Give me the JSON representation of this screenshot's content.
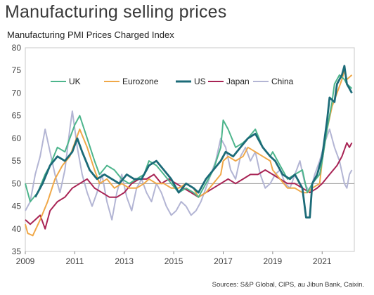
{
  "title": "Manufacturing selling prices",
  "subtitle": "Manufacturing PMI Prices Charged Index",
  "source": "Sources: S&P Global, CIPS, au Jibun Bank, Caixin.",
  "chart_data": {
    "type": "line",
    "title": "Manufacturing selling prices",
    "ylabel": "Manufacturing PMI Prices Charged Index",
    "xlim": [
      2009.0,
      2022.3
    ],
    "ylim": [
      35,
      80
    ],
    "y_ticks": [
      35,
      40,
      45,
      50,
      55,
      60,
      65,
      70,
      75,
      80
    ],
    "x_ticks": [
      2009,
      2011,
      2013,
      2015,
      2017,
      2019,
      2021
    ],
    "reference_line": 50,
    "legend_position": "top",
    "series": [
      {
        "name": "UK",
        "color": "#4db58c",
        "points": [
          [
            2009.0,
            50
          ],
          [
            2009.2,
            46
          ],
          [
            2009.5,
            48
          ],
          [
            2009.8,
            52
          ],
          [
            2010.0,
            54
          ],
          [
            2010.3,
            58
          ],
          [
            2010.6,
            57
          ],
          [
            2010.8,
            60
          ],
          [
            2011.0,
            63
          ],
          [
            2011.2,
            65
          ],
          [
            2011.5,
            60
          ],
          [
            2011.8,
            55
          ],
          [
            2012.0,
            52
          ],
          [
            2012.3,
            54
          ],
          [
            2012.6,
            53
          ],
          [
            2012.9,
            51
          ],
          [
            2013.2,
            50
          ],
          [
            2013.5,
            51
          ],
          [
            2013.8,
            52
          ],
          [
            2014.0,
            55
          ],
          [
            2014.3,
            54
          ],
          [
            2014.6,
            52
          ],
          [
            2014.9,
            50
          ],
          [
            2015.2,
            48
          ],
          [
            2015.5,
            49
          ],
          [
            2015.8,
            48
          ],
          [
            2016.0,
            47
          ],
          [
            2016.3,
            50
          ],
          [
            2016.6,
            53
          ],
          [
            2016.9,
            58
          ],
          [
            2017.0,
            64
          ],
          [
            2017.2,
            62
          ],
          [
            2017.5,
            58
          ],
          [
            2017.8,
            59
          ],
          [
            2018.0,
            60
          ],
          [
            2018.3,
            62
          ],
          [
            2018.6,
            58
          ],
          [
            2018.9,
            56
          ],
          [
            2019.0,
            57
          ],
          [
            2019.3,
            54
          ],
          [
            2019.6,
            51
          ],
          [
            2019.9,
            52
          ],
          [
            2020.2,
            53
          ],
          [
            2020.4,
            48
          ],
          [
            2020.6,
            50
          ],
          [
            2020.9,
            52
          ],
          [
            2021.0,
            55
          ],
          [
            2021.2,
            62
          ],
          [
            2021.4,
            68
          ],
          [
            2021.5,
            72
          ],
          [
            2021.7,
            74
          ],
          [
            2021.9,
            73
          ],
          [
            2022.0,
            72
          ],
          [
            2022.2,
            71
          ]
        ]
      },
      {
        "name": "Eurozone",
        "color": "#f0a848",
        "points": [
          [
            2009.0,
            41
          ],
          [
            2009.1,
            39
          ],
          [
            2009.3,
            38.5
          ],
          [
            2009.6,
            42
          ],
          [
            2009.9,
            46
          ],
          [
            2010.2,
            51
          ],
          [
            2010.5,
            54
          ],
          [
            2010.8,
            56
          ],
          [
            2011.0,
            59
          ],
          [
            2011.2,
            62
          ],
          [
            2011.5,
            58
          ],
          [
            2011.8,
            53
          ],
          [
            2012.0,
            50
          ],
          [
            2012.3,
            51
          ],
          [
            2012.6,
            49
          ],
          [
            2012.9,
            50
          ],
          [
            2013.2,
            49
          ],
          [
            2013.5,
            49
          ],
          [
            2013.8,
            50
          ],
          [
            2014.0,
            51
          ],
          [
            2014.3,
            50
          ],
          [
            2014.6,
            50
          ],
          [
            2014.9,
            49
          ],
          [
            2015.2,
            49
          ],
          [
            2015.5,
            50
          ],
          [
            2015.8,
            49
          ],
          [
            2016.0,
            47
          ],
          [
            2016.3,
            48
          ],
          [
            2016.6,
            50
          ],
          [
            2016.9,
            52
          ],
          [
            2017.0,
            55
          ],
          [
            2017.2,
            56
          ],
          [
            2017.5,
            55
          ],
          [
            2017.8,
            56
          ],
          [
            2018.0,
            58
          ],
          [
            2018.3,
            57
          ],
          [
            2018.6,
            56
          ],
          [
            2018.9,
            55
          ],
          [
            2019.0,
            53
          ],
          [
            2019.3,
            51
          ],
          [
            2019.6,
            49
          ],
          [
            2019.9,
            49
          ],
          [
            2020.2,
            48
          ],
          [
            2020.4,
            48
          ],
          [
            2020.6,
            49
          ],
          [
            2020.9,
            50
          ],
          [
            2021.0,
            55
          ],
          [
            2021.2,
            62
          ],
          [
            2021.4,
            67
          ],
          [
            2021.6,
            70
          ],
          [
            2021.8,
            73
          ],
          [
            2021.9,
            75
          ],
          [
            2022.0,
            73
          ],
          [
            2022.2,
            74
          ]
        ]
      },
      {
        "name": "US",
        "color": "#1c6b78",
        "points": [
          [
            2009.4,
            47
          ],
          [
            2009.7,
            50
          ],
          [
            2010.0,
            54
          ],
          [
            2010.3,
            56
          ],
          [
            2010.6,
            55
          ],
          [
            2010.9,
            57
          ],
          [
            2011.1,
            60
          ],
          [
            2011.3,
            57
          ],
          [
            2011.6,
            53
          ],
          [
            2011.9,
            51
          ],
          [
            2012.2,
            52
          ],
          [
            2012.5,
            51
          ],
          [
            2012.8,
            50
          ],
          [
            2013.1,
            52
          ],
          [
            2013.4,
            51
          ],
          [
            2013.7,
            51
          ],
          [
            2014.0,
            54
          ],
          [
            2014.3,
            55
          ],
          [
            2014.6,
            53
          ],
          [
            2014.9,
            51
          ],
          [
            2015.2,
            48
          ],
          [
            2015.5,
            50
          ],
          [
            2015.8,
            49
          ],
          [
            2016.0,
            48
          ],
          [
            2016.3,
            51
          ],
          [
            2016.6,
            53
          ],
          [
            2016.9,
            55
          ],
          [
            2017.1,
            57
          ],
          [
            2017.4,
            56
          ],
          [
            2017.7,
            58
          ],
          [
            2018.0,
            60
          ],
          [
            2018.3,
            61
          ],
          [
            2018.6,
            58
          ],
          [
            2018.9,
            56
          ],
          [
            2019.1,
            55
          ],
          [
            2019.4,
            52
          ],
          [
            2019.7,
            51
          ],
          [
            2019.9,
            52
          ],
          [
            2020.2,
            49
          ],
          [
            2020.35,
            42.5
          ],
          [
            2020.5,
            42.5
          ],
          [
            2020.6,
            50
          ],
          [
            2020.8,
            52
          ],
          [
            2021.0,
            56
          ],
          [
            2021.2,
            64
          ],
          [
            2021.3,
            69
          ],
          [
            2021.5,
            68
          ],
          [
            2021.6,
            72
          ],
          [
            2021.8,
            74
          ],
          [
            2021.9,
            76
          ],
          [
            2022.0,
            72
          ],
          [
            2022.1,
            71
          ],
          [
            2022.2,
            70
          ]
        ]
      },
      {
        "name": "Japan",
        "color": "#a82354",
        "points": [
          [
            2009.0,
            42
          ],
          [
            2009.2,
            41
          ],
          [
            2009.4,
            42
          ],
          [
            2009.6,
            43
          ],
          [
            2009.8,
            40
          ],
          [
            2010.0,
            44
          ],
          [
            2010.3,
            46
          ],
          [
            2010.6,
            47
          ],
          [
            2010.9,
            49
          ],
          [
            2011.2,
            50
          ],
          [
            2011.5,
            51
          ],
          [
            2011.8,
            49
          ],
          [
            2012.1,
            48
          ],
          [
            2012.4,
            47
          ],
          [
            2012.7,
            47
          ],
          [
            2013.0,
            48
          ],
          [
            2013.3,
            50
          ],
          [
            2013.6,
            51
          ],
          [
            2013.9,
            51
          ],
          [
            2014.2,
            52
          ],
          [
            2014.5,
            50
          ],
          [
            2014.8,
            51
          ],
          [
            2015.1,
            50
          ],
          [
            2015.4,
            49
          ],
          [
            2015.7,
            48
          ],
          [
            2016.0,
            47
          ],
          [
            2016.3,
            48
          ],
          [
            2016.6,
            49
          ],
          [
            2016.9,
            50
          ],
          [
            2017.2,
            51
          ],
          [
            2017.5,
            50
          ],
          [
            2017.8,
            51
          ],
          [
            2018.1,
            52
          ],
          [
            2018.4,
            52
          ],
          [
            2018.7,
            53
          ],
          [
            2019.0,
            52
          ],
          [
            2019.3,
            51
          ],
          [
            2019.6,
            50
          ],
          [
            2019.9,
            50
          ],
          [
            2020.2,
            49
          ],
          [
            2020.5,
            48
          ],
          [
            2020.8,
            49
          ],
          [
            2021.0,
            50
          ],
          [
            2021.3,
            52
          ],
          [
            2021.6,
            54
          ],
          [
            2021.8,
            56
          ],
          [
            2022.0,
            59
          ],
          [
            2022.1,
            58
          ],
          [
            2022.2,
            59
          ]
        ]
      },
      {
        "name": "China",
        "color": "#b3b5d4",
        "points": [
          [
            2009.0,
            44
          ],
          [
            2009.2,
            46
          ],
          [
            2009.4,
            52
          ],
          [
            2009.6,
            56
          ],
          [
            2009.8,
            62
          ],
          [
            2010.0,
            57
          ],
          [
            2010.2,
            52
          ],
          [
            2010.4,
            48
          ],
          [
            2010.6,
            53
          ],
          [
            2010.8,
            62
          ],
          [
            2010.9,
            66
          ],
          [
            2011.1,
            58
          ],
          [
            2011.3,
            52
          ],
          [
            2011.5,
            48
          ],
          [
            2011.7,
            45
          ],
          [
            2011.9,
            48
          ],
          [
            2012.1,
            52
          ],
          [
            2012.3,
            46
          ],
          [
            2012.5,
            42
          ],
          [
            2012.7,
            48
          ],
          [
            2012.9,
            52
          ],
          [
            2013.1,
            47
          ],
          [
            2013.3,
            44
          ],
          [
            2013.5,
            49
          ],
          [
            2013.7,
            51
          ],
          [
            2013.9,
            48
          ],
          [
            2014.1,
            46
          ],
          [
            2014.3,
            50
          ],
          [
            2014.5,
            48
          ],
          [
            2014.7,
            45
          ],
          [
            2014.9,
            43
          ],
          [
            2015.1,
            44
          ],
          [
            2015.3,
            46
          ],
          [
            2015.5,
            45
          ],
          [
            2015.7,
            43
          ],
          [
            2015.9,
            44
          ],
          [
            2016.1,
            46
          ],
          [
            2016.3,
            49
          ],
          [
            2016.5,
            52
          ],
          [
            2016.7,
            55
          ],
          [
            2016.9,
            60
          ],
          [
            2017.1,
            58
          ],
          [
            2017.3,
            53
          ],
          [
            2017.5,
            51
          ],
          [
            2017.7,
            56
          ],
          [
            2017.9,
            58
          ],
          [
            2018.1,
            55
          ],
          [
            2018.3,
            57
          ],
          [
            2018.5,
            52
          ],
          [
            2018.7,
            49
          ],
          [
            2018.9,
            50
          ],
          [
            2019.1,
            52
          ],
          [
            2019.3,
            53
          ],
          [
            2019.5,
            50
          ],
          [
            2019.7,
            49
          ],
          [
            2019.9,
            52
          ],
          [
            2020.1,
            55
          ],
          [
            2020.3,
            50
          ],
          [
            2020.5,
            48
          ],
          [
            2020.7,
            52
          ],
          [
            2020.9,
            55
          ],
          [
            2021.1,
            59
          ],
          [
            2021.3,
            62
          ],
          [
            2021.5,
            58
          ],
          [
            2021.7,
            55
          ],
          [
            2021.9,
            50
          ],
          [
            2022.0,
            49
          ],
          [
            2022.1,
            52
          ],
          [
            2022.2,
            53
          ]
        ]
      }
    ]
  }
}
